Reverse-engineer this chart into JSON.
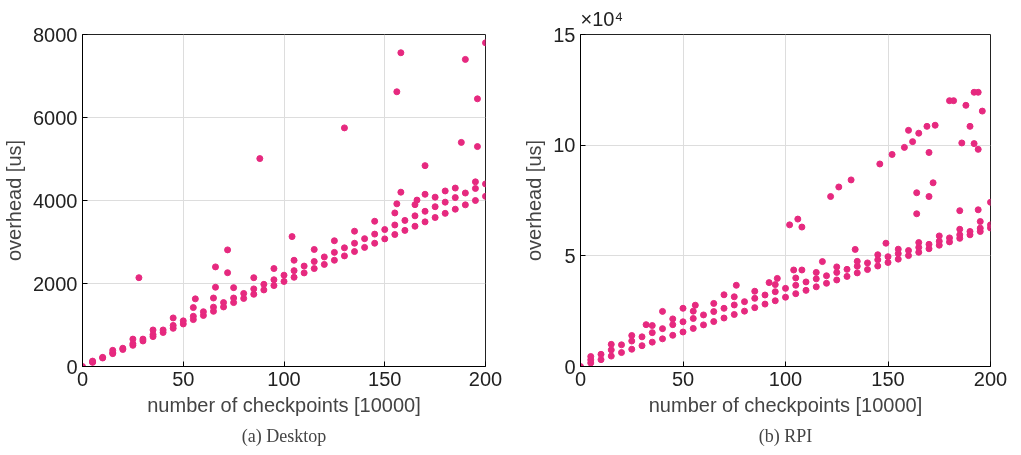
{
  "chart_data": [
    {
      "type": "scatter",
      "xlabel": "number of checkpoints [10000]",
      "ylabel": "overhead [us]",
      "annotations": [
        "(a) Desktop"
      ],
      "xlim": [
        0,
        200
      ],
      "ylim": [
        0,
        8000
      ],
      "xticks": [
        0,
        50,
        100,
        150,
        200
      ],
      "yticks": [
        0,
        2000,
        4000,
        6000,
        8000
      ],
      "grid": true,
      "marker": "circle",
      "series": [
        {
          "color": "#e6297f",
          "x": [
            0,
            5,
            10,
            15,
            20,
            25,
            30,
            35,
            40,
            45,
            50,
            55,
            60,
            65,
            70,
            75,
            80,
            85,
            90,
            95,
            100,
            105,
            110,
            115,
            120,
            125,
            130,
            135,
            140,
            145,
            150,
            155,
            160,
            165,
            170,
            175,
            180,
            185,
            190,
            195,
            200,
            5,
            10,
            15,
            20,
            25,
            30,
            35,
            40,
            45,
            50,
            55,
            60,
            65,
            70,
            75,
            80,
            85,
            90,
            95,
            100,
            105,
            110,
            115,
            120,
            125,
            130,
            135,
            140,
            145,
            150,
            155,
            160,
            165,
            170,
            175,
            180,
            185,
            190,
            195,
            200,
            5,
            15,
            25,
            35,
            45,
            55,
            65,
            75,
            85,
            95,
            105,
            115,
            125,
            135,
            145,
            155,
            165,
            175,
            185,
            195,
            28,
            56,
            66,
            66,
            72,
            72,
            88,
            104,
            130,
            156,
            158,
            156,
            158,
            170,
            188,
            190,
            196,
            196,
            200,
            170,
            180,
            166
          ],
          "values": [
            0,
            100,
            205,
            310,
            410,
            510,
            615,
            720,
            820,
            920,
            1025,
            1130,
            1230,
            1330,
            1435,
            1540,
            1640,
            1740,
            1845,
            1950,
            2050,
            2150,
            2255,
            2360,
            2460,
            2560,
            2665,
            2770,
            2870,
            2970,
            3075,
            3180,
            3280,
            3380,
            3485,
            3590,
            3690,
            3790,
            3895,
            4000,
            4100,
            110,
            220,
            330,
            440,
            550,
            660,
            770,
            880,
            990,
            1100,
            1210,
            1320,
            1430,
            1540,
            1650,
            1760,
            1870,
            1980,
            2090,
            2200,
            2310,
            2420,
            2530,
            2640,
            2750,
            2860,
            2970,
            3080,
            3190,
            3300,
            3410,
            3520,
            3630,
            3740,
            3850,
            3960,
            4070,
            4180,
            4290,
            4400,
            130,
            390,
            660,
            880,
            1170,
            1420,
            1650,
            1900,
            2140,
            2360,
            2560,
            2820,
            3030,
            3260,
            3500,
            3700,
            3900,
            4080,
            4300,
            4450,
            2140,
            1630,
            2400,
            1910,
            2810,
            2260,
            5010,
            3130,
            5750,
            6620,
            7560,
            3920,
            4200,
            4840,
            5400,
            7400,
            6450,
            5300,
            7800,
            4150,
            4230,
            4010
          ]
        }
      ]
    },
    {
      "type": "scatter",
      "xlabel": "number of checkpoints [10000]",
      "ylabel": "overhead [us]",
      "annotations": [
        "×10⁴",
        "(b) RPI"
      ],
      "xlim": [
        0,
        200
      ],
      "ylim": [
        0,
        15
      ],
      "xticks": [
        0,
        50,
        100,
        150,
        200
      ],
      "yticks": [
        0,
        5,
        10,
        15
      ],
      "grid": true,
      "marker": "circle",
      "series": [
        {
          "color": "#e6297f",
          "x": [
            0,
            5,
            10,
            15,
            20,
            25,
            30,
            35,
            40,
            45,
            50,
            55,
            60,
            65,
            70,
            75,
            80,
            85,
            90,
            95,
            100,
            105,
            110,
            115,
            120,
            125,
            130,
            135,
            140,
            145,
            150,
            155,
            160,
            165,
            170,
            175,
            180,
            185,
            190,
            195,
            200,
            5,
            10,
            15,
            20,
            25,
            30,
            35,
            40,
            45,
            50,
            55,
            60,
            65,
            70,
            75,
            80,
            85,
            90,
            95,
            100,
            105,
            110,
            115,
            120,
            125,
            130,
            135,
            140,
            145,
            150,
            155,
            160,
            165,
            170,
            175,
            180,
            185,
            190,
            195,
            200,
            5,
            15,
            25,
            35,
            45,
            55,
            65,
            75,
            85,
            95,
            105,
            115,
            125,
            135,
            145,
            155,
            165,
            175,
            185,
            195,
            102,
            106,
            108,
            122,
            126,
            132,
            146,
            152,
            158,
            160,
            162,
            165,
            169,
            173,
            170,
            172,
            170,
            164,
            164,
            180,
            182,
            188,
            190,
            186,
            192,
            194,
            196,
            192,
            194,
            185,
            194,
            200,
            40,
            32,
            50,
            56,
            70,
            76,
            92,
            96,
            104,
            108,
            118,
            134,
            149
          ],
          "values": [
            0,
            0.16,
            0.31,
            0.47,
            0.63,
            0.78,
            0.94,
            1.1,
            1.25,
            1.41,
            1.56,
            1.72,
            1.88,
            2.03,
            2.19,
            2.35,
            2.5,
            2.66,
            2.82,
            2.97,
            3.13,
            3.29,
            3.44,
            3.6,
            3.76,
            3.91,
            4.07,
            4.23,
            4.38,
            4.54,
            4.7,
            4.85,
            5.01,
            5.16,
            5.32,
            5.48,
            5.63,
            5.79,
            5.95,
            6.1,
            6.26,
            0.3,
            0.55,
            0.75,
            0.98,
            1.15,
            1.34,
            1.53,
            1.71,
            1.89,
            2.02,
            2.17,
            2.33,
            2.48,
            2.63,
            2.78,
            2.93,
            3.08,
            3.23,
            3.38,
            3.53,
            3.67,
            3.82,
            3.96,
            4.1,
            4.25,
            4.39,
            4.53,
            4.68,
            4.82,
            4.96,
            5.1,
            5.24,
            5.38,
            5.52,
            5.66,
            5.81,
            5.95,
            6.1,
            6.25,
            6.4,
            0.45,
            1.0,
            1.4,
            1.85,
            2.15,
            2.5,
            2.85,
            3.15,
            3.4,
            3.7,
            4.0,
            4.25,
            4.5,
            4.75,
            5.05,
            5.3,
            5.6,
            5.9,
            6.2,
            6.55,
            6.4,
            6.66,
            6.3,
            7.68,
            8.11,
            8.43,
            9.15,
            9.58,
            9.9,
            10.67,
            10.16,
            10.54,
            10.85,
            10.9,
            9.67,
            8.3,
            7.68,
            7.85,
            6.9,
            12.01,
            12.01,
            11.8,
            10.85,
            10.1,
            10.07,
            9.81,
            11.54,
            12.39,
            12.39,
            7.04,
            7.08,
            7.42,
            2.49,
            1.89,
            2.63,
            2.77,
            3.24,
            3.67,
            3.79,
            3.98,
            4.36,
            4.36,
            4.74,
            5.29,
            5.57
          ]
        }
      ]
    }
  ]
}
